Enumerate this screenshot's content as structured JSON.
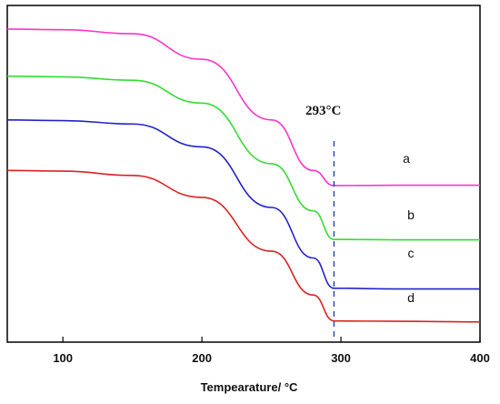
{
  "chart_data": {
    "type": "line",
    "title": "",
    "xlabel": "Tempearature/ °C",
    "ylabel": "",
    "xlim": [
      60,
      400
    ],
    "ylim": [
      0,
      100
    ],
    "x_ticks": [
      100,
      200,
      300,
      400
    ],
    "grid": false,
    "annotation": {
      "text": "293°C",
      "x": 295
    },
    "series": [
      {
        "name": "a",
        "color": "#ff33cc",
        "points": [
          [
            60,
            93
          ],
          [
            100,
            92.8
          ],
          [
            150,
            91.6
          ],
          [
            200,
            84
          ],
          [
            250,
            66
          ],
          [
            280,
            51
          ],
          [
            295,
            46.5
          ],
          [
            340,
            46.6
          ],
          [
            400,
            46.6
          ]
        ]
      },
      {
        "name": "b",
        "color": "#33dd33",
        "points": [
          [
            60,
            79
          ],
          [
            100,
            78.8
          ],
          [
            150,
            77.8
          ],
          [
            200,
            71
          ],
          [
            250,
            53
          ],
          [
            280,
            39
          ],
          [
            295,
            30.5
          ],
          [
            340,
            30.4
          ],
          [
            400,
            30.4
          ]
        ]
      },
      {
        "name": "c",
        "color": "#2222cc",
        "points": [
          [
            60,
            66
          ],
          [
            100,
            65.8
          ],
          [
            150,
            64.8
          ],
          [
            200,
            58
          ],
          [
            250,
            40
          ],
          [
            280,
            25
          ],
          [
            295,
            16
          ],
          [
            340,
            15.8
          ],
          [
            400,
            15.8
          ]
        ]
      },
      {
        "name": "d",
        "color": "#dd2222",
        "points": [
          [
            60,
            51
          ],
          [
            100,
            50.8
          ],
          [
            150,
            49.5
          ],
          [
            200,
            43
          ],
          [
            250,
            27
          ],
          [
            280,
            14
          ],
          [
            295,
            6.3
          ],
          [
            340,
            6.2
          ],
          [
            400,
            6.0
          ]
        ]
      }
    ]
  }
}
